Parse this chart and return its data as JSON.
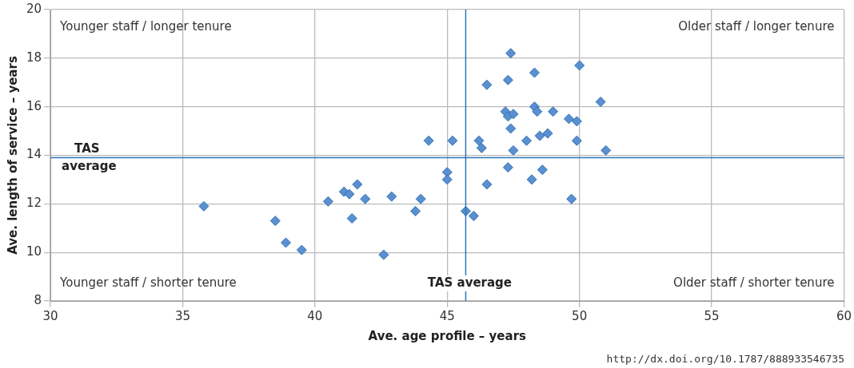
{
  "chart_data": {
    "type": "scatter",
    "xlabel": "Ave. age profile – years",
    "ylabel": "Ave. length of service – years",
    "xlim": [
      30,
      60
    ],
    "xticks": [
      30,
      35,
      40,
      45,
      50,
      55,
      60
    ],
    "ylim": [
      8,
      20
    ],
    "yticks": [
      8,
      10,
      12,
      14,
      16,
      18,
      20
    ],
    "grid": true,
    "legend": false,
    "marker": "diamond",
    "series": [
      {
        "color": "#5b8fd0",
        "x": [
          35.8,
          38.5,
          38.9,
          39.5,
          40.5,
          41.1,
          41.3,
          41.6,
          41.4,
          41.9,
          42.6,
          42.9,
          43.8,
          44.0,
          44.3,
          45.0,
          45.0,
          45.2,
          45.7,
          46.0,
          46.2,
          46.3,
          46.5,
          46.5,
          47.2,
          47.3,
          47.3,
          47.3,
          47.4,
          47.4,
          47.5,
          47.5,
          48.0,
          48.2,
          48.3,
          48.3,
          48.4,
          48.5,
          48.6,
          48.8,
          49.0,
          49.6,
          49.7,
          49.9,
          49.9,
          50.0,
          50.8,
          51.0
        ],
        "values": [
          11.9,
          11.3,
          10.4,
          10.1,
          12.1,
          12.5,
          12.4,
          12.8,
          11.4,
          12.2,
          9.9,
          12.3,
          11.7,
          12.2,
          14.6,
          13.3,
          13.0,
          14.6,
          11.7,
          11.5,
          14.6,
          14.3,
          16.9,
          12.8,
          15.8,
          15.6,
          17.1,
          13.5,
          18.2,
          15.1,
          15.7,
          14.2,
          14.6,
          13.0,
          17.4,
          16.0,
          15.8,
          14.8,
          13.4,
          14.9,
          15.8,
          15.5,
          12.2,
          15.4,
          14.6,
          17.7,
          16.2,
          14.2
        ]
      }
    ],
    "ref_lines": [
      {
        "axis": "y",
        "value": 13.9,
        "label": "TAS average",
        "color": "#2e75b6"
      },
      {
        "axis": "x",
        "value": 45.7,
        "label": "TAS average",
        "color": "#2e75b6"
      }
    ],
    "annotations": [
      "Younger staff / longer tenure",
      "Older staff / longer tenure",
      "Younger staff / shorter tenure",
      "Older staff / shorter tenure",
      "http://dx.doi.org/10.1787/888933546735"
    ]
  }
}
